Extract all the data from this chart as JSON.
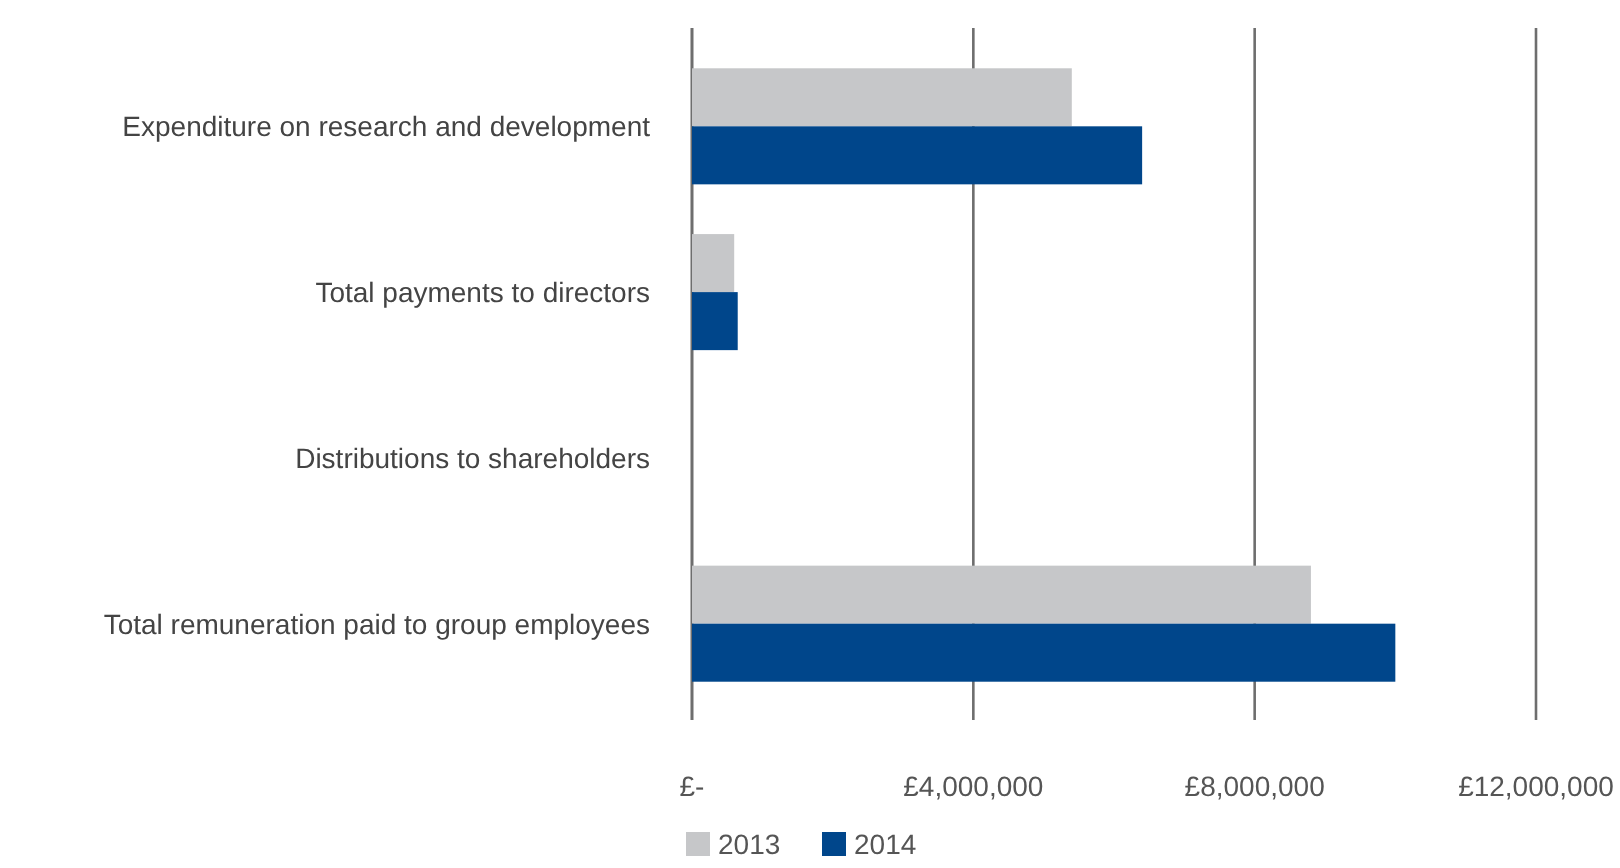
{
  "chart_data": {
    "type": "bar",
    "orientation": "horizontal",
    "categories": [
      "Expenditure on research and development",
      "Total payments to directors",
      "Distributions to shareholders",
      "Total remuneration paid to group employees"
    ],
    "series": [
      {
        "name": "2013",
        "color": "#c6c7c9",
        "values": [
          5400000,
          600000,
          0,
          8800000
        ]
      },
      {
        "name": "2014",
        "color": "#00468b",
        "values": [
          6400000,
          650000,
          0,
          10000000
        ]
      }
    ],
    "xlim": [
      0,
      12000000
    ],
    "xticks": [
      {
        "value": 0,
        "label": "£-"
      },
      {
        "value": 4000000,
        "label": "£4,000,000"
      },
      {
        "value": 8000000,
        "label": "£8,000,000"
      },
      {
        "value": 12000000,
        "label": "£12,000,000"
      }
    ],
    "grid": "x",
    "legend": "bottom"
  }
}
